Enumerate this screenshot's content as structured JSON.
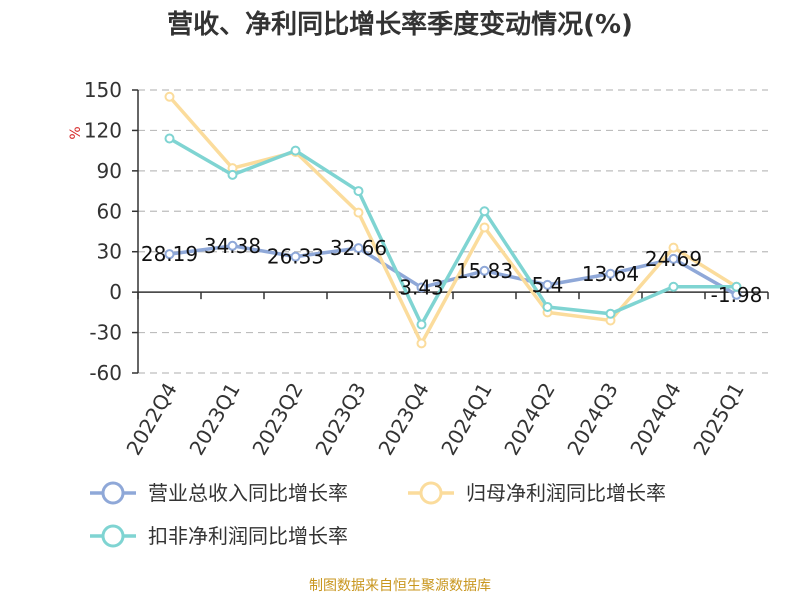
{
  "colors": {
    "revenue": "#8fa8d8",
    "net_profit": "#fbdc9c",
    "deducted_net_profit": "#7fd4d2",
    "grid": "#bdbdbd",
    "axis": "#333333",
    "unit": "#d62a2a",
    "source": "#c8961e"
  },
  "source": "制图数据来自恒生聚源数据库",
  "chart_data": {
    "type": "line",
    "title": "营收、净利同比增长率季度变动情况(%)",
    "ylabel": "%",
    "xlabel": "",
    "ylim": [
      -60,
      150
    ],
    "yticks": [
      150,
      120,
      90,
      60,
      30,
      0,
      -30,
      -60
    ],
    "grid": true,
    "legend_position": "bottom",
    "categories": [
      "2022Q4",
      "2023Q1",
      "2023Q2",
      "2023Q3",
      "2023Q4",
      "2024Q1",
      "2024Q2",
      "2024Q3",
      "2024Q4",
      "2025Q1"
    ],
    "series": [
      {
        "name": "营业总收入同比增长率",
        "color_key": "revenue",
        "values": [
          28.19,
          34.38,
          26.33,
          32.66,
          3.43,
          15.83,
          5.4,
          13.64,
          24.69,
          -1.98
        ],
        "labels": [
          "28.19",
          "34.38",
          "26.33",
          "32.66",
          "3.43",
          "15.83",
          "5.4",
          "13.64",
          "24.69",
          "-1.98"
        ]
      },
      {
        "name": "归母净利润同比增长率",
        "color_key": "net_profit",
        "values": [
          145,
          92,
          104,
          59,
          -38,
          48,
          -15,
          -21,
          33,
          4
        ]
      },
      {
        "name": "扣非净利润同比增长率",
        "color_key": "deducted_net_profit",
        "values": [
          114,
          87,
          105,
          75,
          -24,
          60,
          -11,
          -16,
          4,
          4
        ]
      }
    ]
  }
}
